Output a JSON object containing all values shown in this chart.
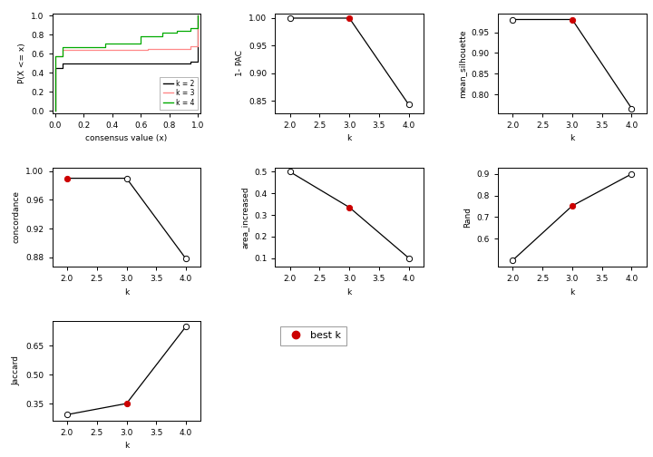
{
  "ecdf_k2": {
    "x": [
      0.0,
      0.001,
      0.001,
      0.05,
      0.05,
      0.95,
      0.95,
      0.999,
      0.999,
      1.0
    ],
    "y": [
      0.0,
      0.0,
      0.45,
      0.45,
      0.5,
      0.5,
      0.52,
      0.52,
      1.0,
      1.0
    ],
    "color": "#000000"
  },
  "ecdf_k3": {
    "x": [
      0.0,
      0.001,
      0.001,
      0.05,
      0.05,
      0.65,
      0.65,
      0.95,
      0.95,
      0.999,
      0.999,
      1.0
    ],
    "y": [
      0.0,
      0.0,
      0.57,
      0.57,
      0.64,
      0.64,
      0.65,
      0.65,
      0.68,
      0.68,
      1.0,
      1.0
    ],
    "color": "#ff8888"
  },
  "ecdf_k4": {
    "x": [
      0.0,
      0.001,
      0.001,
      0.05,
      0.05,
      0.35,
      0.35,
      0.6,
      0.6,
      0.75,
      0.75,
      0.85,
      0.85,
      0.95,
      0.95,
      0.999,
      0.999,
      1.0
    ],
    "y": [
      0.0,
      0.0,
      0.57,
      0.57,
      0.67,
      0.67,
      0.71,
      0.71,
      0.78,
      0.78,
      0.82,
      0.82,
      0.84,
      0.84,
      0.87,
      0.87,
      1.0,
      1.0
    ],
    "color": "#00aa00"
  },
  "subplot2": {
    "k": [
      2,
      3,
      4
    ],
    "values": [
      1.0,
      1.0,
      0.843
    ],
    "best_k": 3,
    "ylabel": "1- PAC",
    "xlabel": "k",
    "yticks": [
      0.85,
      0.9,
      0.95,
      1.0
    ],
    "ylim": [
      0.828,
      1.008
    ]
  },
  "subplot3": {
    "k": [
      2,
      3,
      4
    ],
    "values": [
      0.981,
      0.981,
      0.766
    ],
    "best_k": 3,
    "ylabel": "mean_silhouette",
    "xlabel": "k",
    "yticks": [
      0.8,
      0.85,
      0.9,
      0.95
    ],
    "ylim": [
      0.755,
      0.995
    ]
  },
  "subplot4": {
    "k": [
      2,
      3,
      4
    ],
    "values": [
      0.99,
      0.99,
      0.878
    ],
    "best_k": 2,
    "ylabel": "concordance",
    "xlabel": "k",
    "yticks": [
      0.88,
      0.92,
      0.96,
      1.0
    ],
    "ylim": [
      0.867,
      1.005
    ]
  },
  "subplot5": {
    "k": [
      2,
      3,
      4
    ],
    "values": [
      0.5,
      0.335,
      0.1
    ],
    "best_k": 3,
    "ylabel": "area_increased",
    "xlabel": "k",
    "yticks": [
      0.1,
      0.2,
      0.3,
      0.4,
      0.5
    ],
    "ylim": [
      0.06,
      0.52
    ]
  },
  "subplot6": {
    "k": [
      2,
      3,
      4
    ],
    "values": [
      0.5,
      0.752,
      0.9
    ],
    "best_k": 3,
    "ylabel": "Rand",
    "xlabel": "k",
    "yticks": [
      0.6,
      0.7,
      0.8,
      0.9
    ],
    "ylim": [
      0.47,
      0.93
    ]
  },
  "subplot7": {
    "k": [
      2,
      3,
      4
    ],
    "values": [
      0.295,
      0.352,
      0.748
    ],
    "best_k": 3,
    "ylabel": "Jaccard",
    "xlabel": "k",
    "yticks": [
      0.35,
      0.5,
      0.65
    ],
    "ylim": [
      0.265,
      0.775
    ]
  },
  "legend_k2_color": "#000000",
  "legend_k3_color": "#ff8888",
  "legend_k4_color": "#00aa00",
  "best_k_color": "#cc0000",
  "line_color": "#000000"
}
